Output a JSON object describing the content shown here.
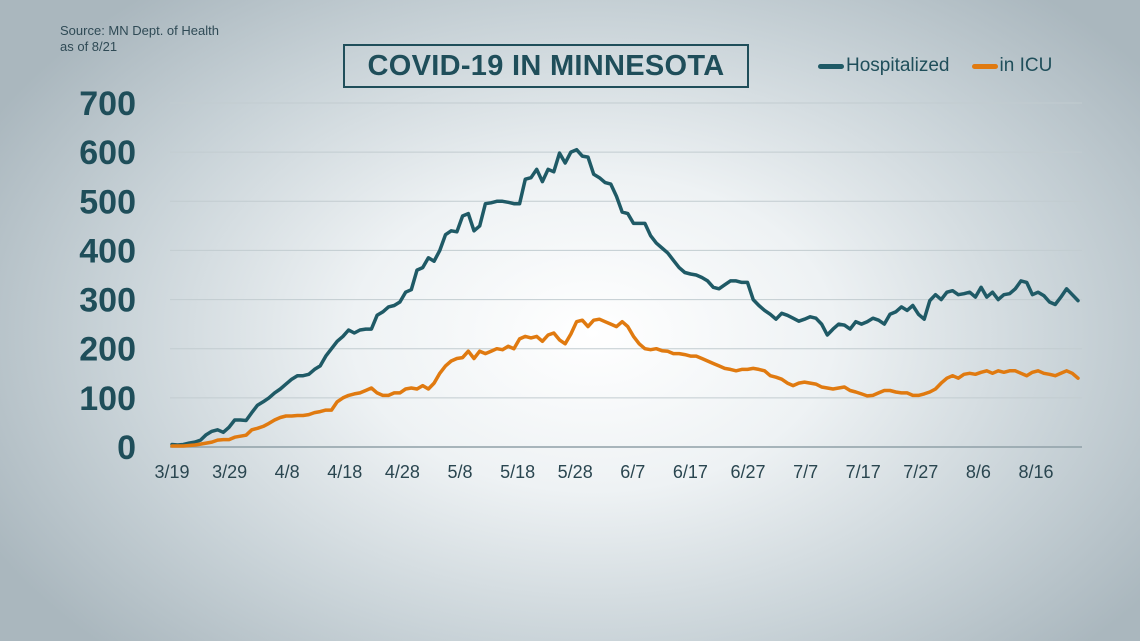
{
  "source": {
    "line1": "Source: MN Dept. of Health",
    "line2": "as of 8/21"
  },
  "chart_data": {
    "type": "line",
    "title": "COVID-19 IN MINNESOTA",
    "xlabel": "",
    "ylabel": "",
    "ylim": [
      0,
      700
    ],
    "yticks": [
      "0",
      "100",
      "200",
      "300",
      "400",
      "500",
      "600",
      "700"
    ],
    "grid": true,
    "legend_position": "top-right",
    "x_tick_labels": [
      "3/19",
      "3/29",
      "4/8",
      "4/18",
      "4/28",
      "5/8",
      "5/18",
      "5/28",
      "6/7",
      "6/17",
      "6/27",
      "7/7",
      "7/17",
      "7/27",
      "8/6",
      "8/16"
    ],
    "x_start": "3/19",
    "x_end": "8/21",
    "series": [
      {
        "name": "Hospitalized",
        "color": "#1f5a66",
        "values": [
          5,
          4,
          5,
          8,
          10,
          14,
          25,
          32,
          35,
          30,
          40,
          55,
          55,
          54,
          70,
          85,
          92,
          100,
          110,
          118,
          128,
          138,
          145,
          145,
          148,
          158,
          165,
          185,
          200,
          215,
          225,
          238,
          232,
          238,
          240,
          240,
          268,
          275,
          285,
          288,
          295,
          315,
          320,
          360,
          365,
          385,
          378,
          400,
          432,
          440,
          438,
          470,
          475,
          440,
          450,
          495,
          497,
          500,
          500,
          498,
          495,
          495,
          545,
          548,
          565,
          540,
          565,
          560,
          598,
          578,
          600,
          605,
          592,
          590,
          555,
          548,
          538,
          535,
          510,
          478,
          475,
          455,
          455,
          455,
          430,
          415,
          405,
          395,
          380,
          365,
          355,
          352,
          350,
          345,
          338,
          325,
          322,
          330,
          338,
          338,
          335,
          335,
          300,
          288,
          278,
          270,
          260,
          272,
          268,
          262,
          256,
          260,
          265,
          262,
          250,
          228,
          240,
          250,
          248,
          240,
          255,
          250,
          255,
          262,
          258,
          250,
          270,
          275,
          285,
          278,
          288,
          270,
          260,
          298,
          310,
          300,
          315,
          318,
          310,
          312,
          315,
          305,
          325,
          305,
          315,
          300,
          310,
          312,
          322,
          338,
          335,
          310,
          315,
          308,
          295,
          290,
          305,
          322,
          310,
          298
        ]
      },
      {
        "name": "in ICU",
        "color": "#e07a10",
        "values": [
          2,
          2,
          2,
          3,
          4,
          6,
          8,
          10,
          14,
          15,
          15,
          20,
          22,
          24,
          35,
          38,
          42,
          48,
          55,
          60,
          63,
          63,
          64,
          64,
          66,
          70,
          72,
          75,
          75,
          92,
          100,
          105,
          108,
          110,
          115,
          120,
          110,
          105,
          105,
          110,
          110,
          118,
          120,
          118,
          125,
          118,
          130,
          150,
          165,
          175,
          180,
          182,
          195,
          180,
          195,
          190,
          195,
          200,
          198,
          205,
          200,
          220,
          225,
          222,
          225,
          215,
          228,
          232,
          218,
          210,
          230,
          255,
          258,
          245,
          258,
          260,
          255,
          250,
          245,
          255,
          245,
          225,
          210,
          200,
          198,
          200,
          196,
          195,
          190,
          190,
          188,
          185,
          185,
          180,
          175,
          170,
          165,
          160,
          158,
          155,
          158,
          158,
          160,
          158,
          155,
          145,
          142,
          138,
          130,
          125,
          130,
          132,
          130,
          128,
          122,
          120,
          118,
          120,
          122,
          115,
          112,
          108,
          104,
          105,
          110,
          115,
          115,
          112,
          110,
          110,
          105,
          105,
          108,
          112,
          118,
          130,
          140,
          145,
          140,
          148,
          150,
          148,
          152,
          155,
          150,
          155,
          152,
          155,
          155,
          150,
          145,
          152,
          155,
          150,
          148,
          145,
          150,
          155,
          150,
          140
        ]
      }
    ]
  }
}
